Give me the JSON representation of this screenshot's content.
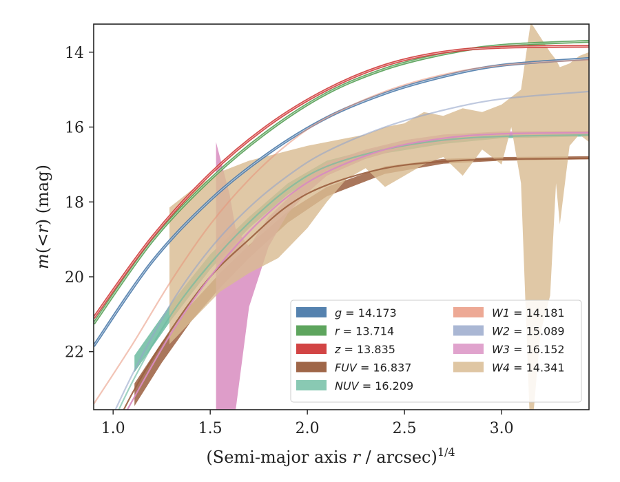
{
  "chart_data": {
    "type": "line",
    "xlabel": "(Semi-major axis r / arcsec)^{1/4}",
    "xlabel_parts": {
      "pre": "(Semi-major axis ",
      "var": "r",
      "post": " / arcsec)",
      "sup": "1/4"
    },
    "ylabel": "m(< r) (mag)",
    "ylabel_parts": {
      "m": "m",
      "open": "(<",
      "r": "r",
      "close": ") (mag)"
    },
    "xlim": [
      0.9,
      3.45
    ],
    "ylim": [
      23.55,
      13.25
    ],
    "y_inverted": true,
    "xticks": [
      1.0,
      1.5,
      2.0,
      2.5,
      3.0
    ],
    "xtick_labels": [
      "1.0",
      "1.5",
      "2.0",
      "2.5",
      "3.0"
    ],
    "yticks": [
      14,
      16,
      18,
      20,
      22
    ],
    "ytick_labels": [
      "14",
      "16",
      "18",
      "20",
      "22"
    ],
    "grid": false,
    "legend_position": "lower-right",
    "series": [
      {
        "name": "g",
        "label_var": "g",
        "value": "14.173",
        "color": "#4c7bab",
        "style": "band",
        "fit": [
          [
            0.9,
            21.85
          ],
          [
            1.2,
            19.6
          ],
          [
            1.5,
            17.95
          ],
          [
            1.8,
            16.7
          ],
          [
            2.1,
            15.75
          ],
          [
            2.4,
            15.1
          ],
          [
            2.7,
            14.65
          ],
          [
            3.0,
            14.35
          ],
          [
            3.45,
            14.17
          ]
        ]
      },
      {
        "name": "r",
        "label_var": "r",
        "value": "13.714",
        "color": "#55a055",
        "style": "band",
        "fit": [
          [
            0.9,
            21.25
          ],
          [
            1.2,
            19.05
          ],
          [
            1.5,
            17.4
          ],
          [
            1.8,
            16.1
          ],
          [
            2.1,
            15.1
          ],
          [
            2.4,
            14.45
          ],
          [
            2.7,
            14.05
          ],
          [
            3.0,
            13.82
          ],
          [
            3.45,
            13.71
          ]
        ]
      },
      {
        "name": "z",
        "label_var": "z",
        "value": "13.835",
        "color": "#d03a3a",
        "style": "band",
        "fit": [
          [
            0.9,
            21.1
          ],
          [
            1.2,
            18.95
          ],
          [
            1.5,
            17.25
          ],
          [
            1.8,
            15.95
          ],
          [
            2.1,
            15.0
          ],
          [
            2.4,
            14.35
          ],
          [
            2.7,
            14.0
          ],
          [
            3.0,
            13.87
          ],
          [
            3.45,
            13.84
          ]
        ]
      },
      {
        "name": "FUV",
        "label_var": "FUV",
        "value": "16.837",
        "color": "#9a5e3e",
        "style": "band",
        "fit": [
          [
            0.9,
            25.2
          ],
          [
            1.1,
            23.1
          ],
          [
            1.3,
            21.4
          ],
          [
            1.5,
            20.0
          ],
          [
            1.7,
            19.0
          ],
          [
            1.9,
            18.1
          ],
          [
            2.1,
            17.55
          ],
          [
            2.4,
            17.1
          ],
          [
            2.7,
            16.92
          ],
          [
            3.0,
            16.86
          ],
          [
            3.45,
            16.84
          ]
        ],
        "band": [
          [
            1.11,
            23.45,
            22.85
          ],
          [
            1.25,
            22.3,
            21.75
          ],
          [
            1.4,
            21.2,
            20.75
          ],
          [
            1.55,
            20.3,
            19.9
          ],
          [
            1.7,
            19.5,
            19.15
          ],
          [
            1.9,
            18.55,
            18.25
          ],
          [
            2.1,
            17.85,
            17.6
          ],
          [
            2.4,
            17.25,
            17.05
          ],
          [
            2.7,
            16.98,
            16.85
          ],
          [
            3.0,
            16.9,
            16.8
          ],
          [
            3.45,
            16.86,
            16.78
          ]
        ]
      },
      {
        "name": "NUV",
        "label_var": "NUV",
        "value": "16.209",
        "color": "#6cbba0",
        "style": "band",
        "fit": [
          [
            0.9,
            25.0
          ],
          [
            1.1,
            22.8
          ],
          [
            1.3,
            21.0
          ],
          [
            1.5,
            19.65
          ],
          [
            1.7,
            18.55
          ],
          [
            1.9,
            17.65
          ],
          [
            2.1,
            17.05
          ],
          [
            2.4,
            16.6
          ],
          [
            2.7,
            16.35
          ],
          [
            3.0,
            16.25
          ],
          [
            3.45,
            16.21
          ]
        ],
        "band": [
          [
            1.11,
            22.55,
            22.1
          ],
          [
            1.3,
            21.15,
            20.7
          ],
          [
            1.5,
            19.8,
            19.4
          ],
          [
            1.7,
            18.7,
            18.4
          ],
          [
            1.9,
            17.8,
            17.5
          ],
          [
            2.1,
            17.15,
            16.9
          ],
          [
            2.4,
            16.7,
            16.5
          ],
          [
            2.7,
            16.45,
            16.3
          ],
          [
            3.0,
            16.3,
            16.2
          ],
          [
            3.45,
            16.25,
            16.18
          ]
        ]
      },
      {
        "name": "W1",
        "label_var": "W1",
        "value": "14.181",
        "color": "#e8937a",
        "style": "band",
        "fit": [
          [
            0.9,
            23.4
          ],
          [
            1.1,
            21.8
          ],
          [
            1.3,
            20.1
          ],
          [
            1.5,
            18.6
          ],
          [
            1.7,
            17.4
          ],
          [
            1.9,
            16.45
          ],
          [
            2.1,
            15.75
          ],
          [
            2.4,
            15.05
          ],
          [
            2.7,
            14.6
          ],
          [
            3.0,
            14.35
          ],
          [
            3.45,
            14.2
          ]
        ]
      },
      {
        "name": "W2",
        "label_var": "W2",
        "value": "15.089",
        "color": "#95a5c9",
        "style": "band",
        "fit": [
          [
            0.9,
            24.8
          ],
          [
            1.1,
            22.6
          ],
          [
            1.3,
            20.7
          ],
          [
            1.5,
            19.25
          ],
          [
            1.7,
            18.15
          ],
          [
            1.9,
            17.3
          ],
          [
            2.1,
            16.65
          ],
          [
            2.4,
            16.0
          ],
          [
            2.7,
            15.55
          ],
          [
            3.0,
            15.25
          ],
          [
            3.45,
            15.05
          ]
        ]
      },
      {
        "name": "W3",
        "label_var": "W3",
        "value": "16.152",
        "color": "#d88cc0",
        "style": "band",
        "fit": [
          [
            0.9,
            25.2
          ],
          [
            1.1,
            23.3
          ],
          [
            1.3,
            21.5
          ],
          [
            1.5,
            20.0
          ],
          [
            1.7,
            18.8
          ],
          [
            1.9,
            17.85
          ],
          [
            2.1,
            17.2
          ],
          [
            2.4,
            16.6
          ],
          [
            2.7,
            16.3
          ],
          [
            3.0,
            16.18
          ],
          [
            3.45,
            16.15
          ]
        ],
        "band": [
          [
            1.53,
            24.5,
            16.4
          ],
          [
            1.6,
            23.8,
            17.8
          ],
          [
            1.63,
            23.6,
            18.7
          ],
          [
            1.7,
            20.8,
            19.2
          ],
          [
            1.8,
            19.2,
            18.4
          ],
          [
            1.9,
            18.3,
            17.9
          ],
          [
            2.0,
            17.75,
            17.35
          ],
          [
            2.1,
            17.3,
            16.95
          ],
          [
            2.3,
            16.85,
            16.6
          ],
          [
            2.5,
            16.55,
            16.35
          ],
          [
            2.7,
            16.4,
            16.2
          ],
          [
            3.0,
            16.25,
            16.12
          ],
          [
            3.45,
            16.2,
            16.1
          ]
        ]
      },
      {
        "name": "W4",
        "label_var": "W4",
        "value": "14.341",
        "color": "#d9bc93",
        "style": "band",
        "band": [
          [
            1.29,
            21.8,
            18.15
          ],
          [
            1.4,
            21.2,
            17.7
          ],
          [
            1.55,
            20.4,
            17.2
          ],
          [
            1.7,
            19.9,
            16.9
          ],
          [
            1.85,
            19.5,
            16.7
          ],
          [
            2.0,
            18.7,
            16.5
          ],
          [
            2.1,
            18.0,
            16.4
          ],
          [
            2.2,
            17.4,
            16.3
          ],
          [
            2.3,
            17.1,
            16.2
          ],
          [
            2.4,
            17.6,
            16.0
          ],
          [
            2.5,
            17.3,
            15.9
          ],
          [
            2.6,
            17.0,
            15.6
          ],
          [
            2.7,
            16.8,
            15.7
          ],
          [
            2.8,
            17.3,
            15.5
          ],
          [
            2.9,
            16.6,
            15.6
          ],
          [
            3.0,
            17.0,
            15.4
          ],
          [
            3.05,
            16.0,
            15.2
          ],
          [
            3.1,
            17.5,
            15.0
          ],
          [
            3.15,
            24.5,
            13.2
          ],
          [
            3.2,
            21.5,
            13.6
          ],
          [
            3.25,
            20.5,
            14.0
          ],
          [
            3.28,
            17.5,
            14.2
          ],
          [
            3.3,
            18.6,
            14.4
          ],
          [
            3.35,
            16.5,
            14.3
          ],
          [
            3.4,
            16.2,
            14.1
          ],
          [
            3.45,
            16.4,
            14.0
          ]
        ]
      }
    ]
  }
}
